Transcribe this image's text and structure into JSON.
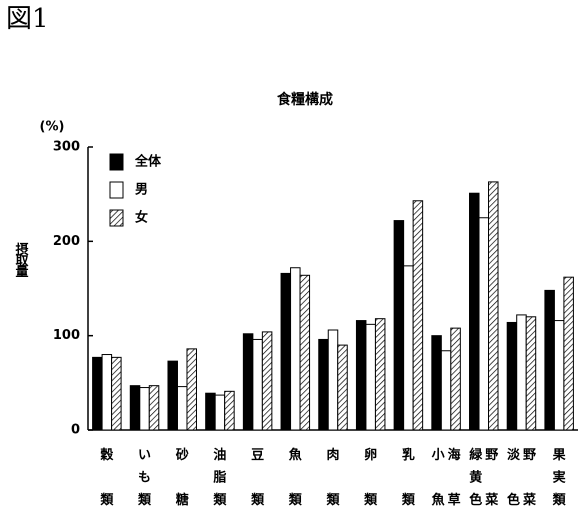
{
  "figure_label": "図1",
  "chart_data": {
    "type": "bar",
    "title": "食糧構成",
    "y_label": "摂取量",
    "y_unit": "(%)",
    "categories": [
      [
        "穀類"
      ],
      [
        "いも類"
      ],
      [
        "砂糖"
      ],
      [
        "油脂類"
      ],
      [
        "豆類"
      ],
      [
        "魚類"
      ],
      [
        "肉類"
      ],
      [
        "卵類"
      ],
      [
        "乳類"
      ],
      [
        "小魚",
        "海草"
      ],
      [
        "緑黄色",
        "野菜"
      ],
      [
        "淡色",
        "野菜"
      ],
      [
        "果実類"
      ]
    ],
    "series": [
      {
        "name": "全体",
        "color": "#000000",
        "values": [
          77,
          47,
          73,
          39,
          102,
          166,
          96,
          116,
          222,
          100,
          251,
          114,
          148
        ]
      },
      {
        "name": "男",
        "color": "#ffffff",
        "values": [
          80,
          45,
          46,
          37,
          96,
          172,
          106,
          112,
          174,
          84,
          225,
          122,
          116
        ]
      },
      {
        "name": "女",
        "color": "#ffffff",
        "pattern": "diagonal",
        "values": [
          77,
          47,
          86,
          41,
          104,
          164,
          90,
          118,
          243,
          108,
          263,
          120,
          162
        ]
      }
    ],
    "ylim": [
      0,
      300
    ],
    "yticks": [
      0,
      100,
      200,
      300
    ],
    "legend": "upper left"
  }
}
